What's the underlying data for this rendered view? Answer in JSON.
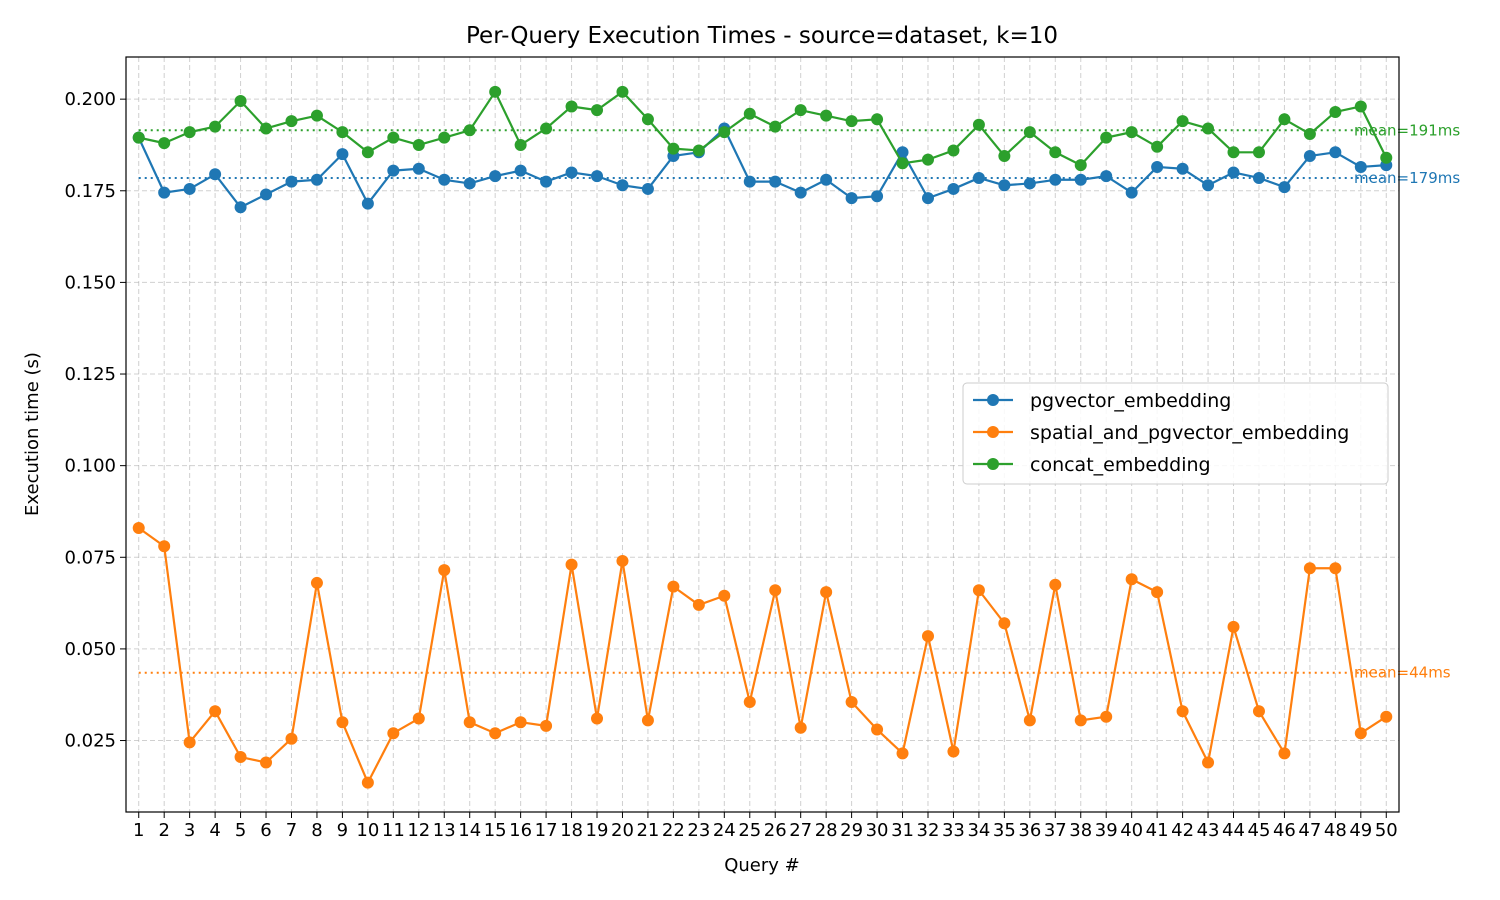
{
  "chart_data": {
    "type": "line",
    "title": "Per-Query Execution Times - source=dataset, k=10",
    "xlabel": "Query #",
    "ylabel": "Execution time (s)",
    "xlim": [
      0.5,
      50.5
    ],
    "ylim": [
      0.0055,
      0.2115
    ],
    "x": [
      1,
      2,
      3,
      4,
      5,
      6,
      7,
      8,
      9,
      10,
      11,
      12,
      13,
      14,
      15,
      16,
      17,
      18,
      19,
      20,
      21,
      22,
      23,
      24,
      25,
      26,
      27,
      28,
      29,
      30,
      31,
      32,
      33,
      34,
      35,
      36,
      37,
      38,
      39,
      40,
      41,
      42,
      43,
      44,
      45,
      46,
      47,
      48,
      49,
      50
    ],
    "x_tick_labels": [
      "1",
      "2",
      "3",
      "4",
      "5",
      "6",
      "7",
      "8",
      "9",
      "10",
      "11",
      "12",
      "13",
      "14",
      "15",
      "16",
      "17",
      "18",
      "19",
      "20",
      "21",
      "22",
      "23",
      "24",
      "25",
      "26",
      "27",
      "28",
      "29",
      "30",
      "31",
      "32",
      "33",
      "34",
      "35",
      "36",
      "37",
      "38",
      "39",
      "40",
      "41",
      "42",
      "43",
      "44",
      "45",
      "46",
      "47",
      "48",
      "49",
      "50"
    ],
    "y_ticks": [
      0.025,
      0.05,
      0.075,
      0.1,
      0.125,
      0.15,
      0.175,
      0.2
    ],
    "y_tick_labels": [
      "0.025",
      "0.050",
      "0.075",
      "0.100",
      "0.125",
      "0.150",
      "0.175",
      "0.200"
    ],
    "grid": true,
    "legend_position": "center-right",
    "series": [
      {
        "name": "pgvector_embedding",
        "color": "#1f77b4",
        "values": [
          0.1895,
          0.1745,
          0.1755,
          0.1795,
          0.1705,
          0.174,
          0.1775,
          0.178,
          0.185,
          0.1715,
          0.1805,
          0.181,
          0.178,
          0.177,
          0.179,
          0.1805,
          0.1775,
          0.18,
          0.179,
          0.1765,
          0.1755,
          0.1845,
          0.1855,
          0.192,
          0.1775,
          0.1775,
          0.1745,
          0.178,
          0.173,
          0.1735,
          0.1855,
          0.173,
          0.1755,
          0.1785,
          0.1765,
          0.177,
          0.178,
          0.178,
          0.179,
          0.1745,
          0.1815,
          0.181,
          0.1765,
          0.18,
          0.1785,
          0.176,
          0.1845,
          0.1855,
          0.1815,
          0.182
        ],
        "mean": 0.1785,
        "mean_label": "mean=179ms"
      },
      {
        "name": "spatial_and_pgvector_embedding",
        "color": "#ff7f0e",
        "values": [
          0.083,
          0.078,
          0.0245,
          0.033,
          0.0205,
          0.019,
          0.0255,
          0.068,
          0.03,
          0.0135,
          0.027,
          0.031,
          0.0715,
          0.03,
          0.027,
          0.03,
          0.029,
          0.073,
          0.031,
          0.074,
          0.0305,
          0.067,
          0.062,
          0.0645,
          0.0355,
          0.066,
          0.0285,
          0.0655,
          0.0355,
          0.028,
          0.0215,
          0.0535,
          0.022,
          0.066,
          0.057,
          0.0305,
          0.0675,
          0.0305,
          0.0315,
          0.069,
          0.0655,
          0.033,
          0.019,
          0.056,
          0.033,
          0.0215,
          0.072,
          0.072,
          0.027,
          0.0315
        ],
        "mean": 0.0435,
        "mean_label": "mean=44ms"
      },
      {
        "name": "concat_embedding",
        "color": "#2ca02c",
        "values": [
          0.1895,
          0.188,
          0.191,
          0.1925,
          0.1995,
          0.192,
          0.194,
          0.1955,
          0.191,
          0.1855,
          0.1895,
          0.1875,
          0.1895,
          0.1915,
          0.202,
          0.1875,
          0.192,
          0.198,
          0.197,
          0.202,
          0.1945,
          0.1865,
          0.186,
          0.191,
          0.196,
          0.1925,
          0.197,
          0.1955,
          0.194,
          0.1945,
          0.1825,
          0.1835,
          0.186,
          0.193,
          0.1845,
          0.191,
          0.1855,
          0.182,
          0.1895,
          0.191,
          0.187,
          0.194,
          0.192,
          0.1855,
          0.1855,
          0.1945,
          0.1905,
          0.1965,
          0.198,
          0.184
        ],
        "mean": 0.1915,
        "mean_label": "mean=191ms"
      }
    ]
  }
}
